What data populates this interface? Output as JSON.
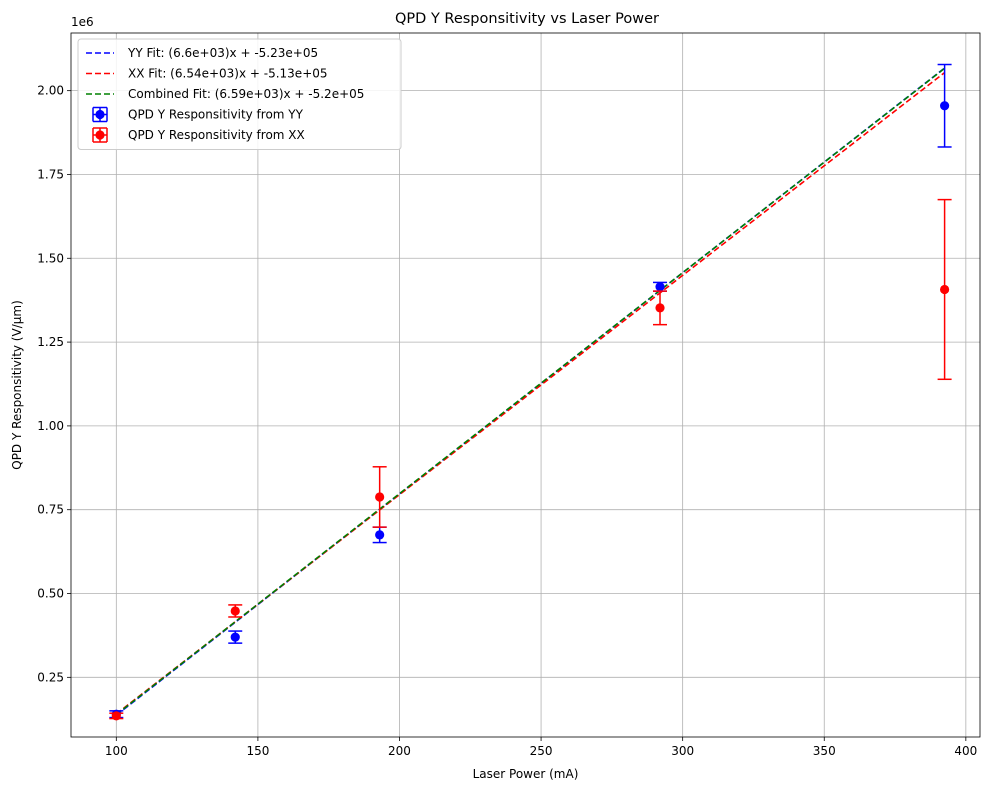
{
  "chart_data": {
    "type": "scatter",
    "title": "QPD Y Responsitivity vs Laser Power",
    "xlabel": "Laser Power (mA)",
    "ylabel": "QPD Y Responsitivity (V/µm)",
    "y_offset_label": "1e6",
    "xlim": [
      84,
      405
    ],
    "ylim": [
      72000,
      2172000
    ],
    "x_ticks": [
      100,
      150,
      200,
      250,
      300,
      350,
      400
    ],
    "x_tick_labels": [
      "100",
      "150",
      "200",
      "250",
      "300",
      "350",
      "400"
    ],
    "y_ticks": [
      250000,
      500000,
      750000,
      1000000,
      1250000,
      1500000,
      1750000,
      2000000
    ],
    "y_tick_labels": [
      "0.25",
      "0.50",
      "0.75",
      "1.00",
      "1.25",
      "1.50",
      "1.75",
      "2.00"
    ],
    "grid": true,
    "legend_position": "top-left",
    "fit_lines": [
      {
        "name": "YY Fit: (6.6e+03)x + -5.23e+05",
        "slope": 6600,
        "intercept": -523000,
        "x_range": [
          100,
          392.5
        ],
        "color": "#0000ff"
      },
      {
        "name": "XX Fit: (6.54e+03)x + -5.13e+05",
        "slope": 6540,
        "intercept": -513000,
        "x_range": [
          100,
          392.5
        ],
        "color": "#ff0000"
      },
      {
        "name": "Combined Fit: (6.59e+03)x + -5.2e+05",
        "slope": 6590,
        "intercept": -520000,
        "x_range": [
          100,
          392.5
        ],
        "color": "#008000"
      }
    ],
    "series": [
      {
        "name": "QPD Y Responsitivity from YY",
        "color": "#0000ff",
        "x": [
          100,
          142,
          193,
          292,
          392.5
        ],
        "y": [
          140000,
          370000,
          675000,
          1415000,
          1955000
        ],
        "y_err": [
          10000,
          18000,
          23000,
          13000,
          123000
        ]
      },
      {
        "name": "QPD Y Responsitivity from XX",
        "color": "#ff0000",
        "x": [
          100,
          142,
          193,
          292,
          392.5
        ],
        "y": [
          135000,
          448000,
          788000,
          1352000,
          1407000
        ],
        "y_err": [
          8000,
          18000,
          90000,
          50000,
          268000
        ]
      }
    ]
  }
}
